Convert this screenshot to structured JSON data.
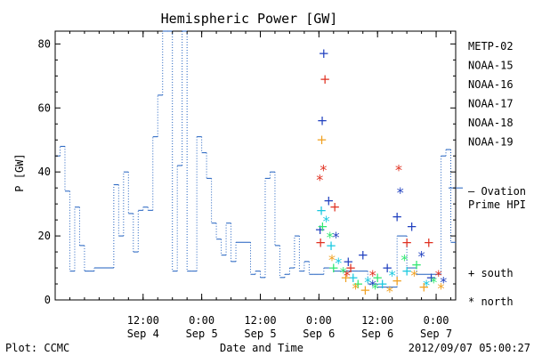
{
  "chart_data": {
    "type": "line",
    "title": "Hemispheric Power [GW]",
    "ylabel": "P [GW]",
    "xlabel": "Date and Time",
    "ylim": [
      0,
      84
    ],
    "xlim": [
      "2012-09-03T18:00",
      "2012-09-07T04:00"
    ],
    "yticks": [
      0,
      20,
      40,
      60,
      80
    ],
    "xticks": [
      {
        "t": "2012-09-04T12:00",
        "time": "12:00",
        "date": "Sep 4"
      },
      {
        "t": "2012-09-05T00:00",
        "time": "0:00",
        "date": "Sep 5"
      },
      {
        "t": "2012-09-05T12:00",
        "time": "12:00",
        "date": "Sep 5"
      },
      {
        "t": "2012-09-06T00:00",
        "time": "0:00",
        "date": "Sep 6"
      },
      {
        "t": "2012-09-06T12:00",
        "time": "12:00",
        "date": "Sep 6"
      },
      {
        "t": "2012-09-07T00:00",
        "time": "0:00",
        "date": "Sep 7"
      }
    ],
    "ovation": {
      "name": "— Ovation Prime HPI",
      "color": "#1f5fbf",
      "right_marker_value": 35,
      "x": [
        "2012-09-03T18:00",
        "2012-09-03T19:00",
        "2012-09-03T20:00",
        "2012-09-03T21:00",
        "2012-09-03T22:00",
        "2012-09-03T23:00",
        "2012-09-04T00:00",
        "2012-09-04T01:00",
        "2012-09-04T02:00",
        "2012-09-04T06:00",
        "2012-09-04T07:00",
        "2012-09-04T08:00",
        "2012-09-04T09:00",
        "2012-09-04T10:00",
        "2012-09-04T11:00",
        "2012-09-04T12:00",
        "2012-09-04T13:00",
        "2012-09-04T14:00",
        "2012-09-04T15:00",
        "2012-09-04T16:00",
        "2012-09-04T17:00",
        "2012-09-04T18:00",
        "2012-09-04T19:00",
        "2012-09-04T20:00",
        "2012-09-04T21:00",
        "2012-09-04T22:00",
        "2012-09-04T23:00",
        "2012-09-05T00:00",
        "2012-09-05T01:00",
        "2012-09-05T02:00",
        "2012-09-05T03:00",
        "2012-09-05T04:00",
        "2012-09-05T05:00",
        "2012-09-05T06:00",
        "2012-09-05T07:00",
        "2012-09-05T10:00",
        "2012-09-05T11:00",
        "2012-09-05T12:00",
        "2012-09-05T13:00",
        "2012-09-05T14:00",
        "2012-09-05T15:00",
        "2012-09-05T16:00",
        "2012-09-05T17:00",
        "2012-09-05T18:00",
        "2012-09-05T19:00",
        "2012-09-05T20:00",
        "2012-09-05T21:00",
        "2012-09-05T22:00",
        "2012-09-05T23:00",
        "2012-09-06T00:00",
        "2012-09-06T01:00",
        "2012-09-06T02:00",
        "2012-09-06T03:00",
        "2012-09-06T08:00",
        "2012-09-06T10:00",
        "2012-09-06T12:00",
        "2012-09-06T14:00",
        "2012-09-06T16:00",
        "2012-09-06T18:00",
        "2012-09-06T20:00",
        "2012-09-06T22:00",
        "2012-09-07T00:00",
        "2012-09-07T01:00",
        "2012-09-07T02:00",
        "2012-09-07T03:00",
        "2012-09-07T04:00"
      ],
      "y": [
        45,
        48,
        34,
        9,
        29,
        17,
        9,
        9,
        10,
        36,
        20,
        40,
        27,
        15,
        28,
        29,
        28,
        51,
        64,
        84,
        88,
        9,
        42,
        86,
        9,
        9,
        51,
        46,
        38,
        24,
        19,
        14,
        24,
        12,
        18,
        8,
        9,
        7,
        38,
        40,
        17,
        7,
        8,
        10,
        20,
        9,
        12,
        8,
        8,
        8,
        10,
        10,
        9,
        9,
        5,
        4,
        4,
        20,
        10,
        8,
        8,
        8,
        45,
        47,
        18,
        18
      ]
    },
    "satellites": [
      {
        "name": "METP-02",
        "color": "#000000",
        "south": [],
        "north": []
      },
      {
        "name": "NOAA-15",
        "color": "#1f3fbf",
        "south": [
          [
            "2012-09-06T01:00",
            77
          ],
          [
            "2012-09-06T00:40",
            56
          ],
          [
            "2012-09-06T02:00",
            31
          ],
          [
            "2012-09-06T00:15",
            22
          ],
          [
            "2012-09-06T06:00",
            12
          ],
          [
            "2012-09-06T09:00",
            14
          ],
          [
            "2012-09-06T14:00",
            10
          ],
          [
            "2012-09-06T16:00",
            26
          ],
          [
            "2012-09-06T19:00",
            23
          ],
          [
            "2012-09-06T23:00",
            7
          ]
        ],
        "north": [
          [
            "2012-09-06T16:40",
            34
          ],
          [
            "2012-09-06T21:00",
            14
          ],
          [
            "2012-09-06T11:00",
            5
          ],
          [
            "2012-09-06T03:30",
            20
          ],
          [
            "2012-09-07T01:30",
            6
          ]
        ]
      },
      {
        "name": "NOAA-16",
        "color": "#18c8e0",
        "south": [
          [
            "2012-09-06T00:30",
            28
          ],
          [
            "2012-09-06T02:30",
            17
          ],
          [
            "2012-09-06T07:00",
            7
          ],
          [
            "2012-09-06T13:00",
            5
          ],
          [
            "2012-09-06T18:00",
            9
          ]
        ],
        "north": [
          [
            "2012-09-06T01:30",
            25
          ],
          [
            "2012-09-06T04:00",
            12
          ],
          [
            "2012-09-06T10:00",
            6
          ],
          [
            "2012-09-06T15:00",
            8
          ],
          [
            "2012-09-06T22:00",
            5
          ]
        ]
      },
      {
        "name": "NOAA-17",
        "color": "#30e870",
        "south": [
          [
            "2012-09-06T00:45",
            23
          ],
          [
            "2012-09-06T03:00",
            10
          ],
          [
            "2012-09-06T08:00",
            5
          ],
          [
            "2012-09-06T12:00",
            7
          ],
          [
            "2012-09-06T20:00",
            11
          ]
        ],
        "north": [
          [
            "2012-09-06T02:15",
            20
          ],
          [
            "2012-09-06T05:00",
            9
          ],
          [
            "2012-09-06T11:30",
            4
          ],
          [
            "2012-09-06T17:30",
            13
          ],
          [
            "2012-09-06T23:30",
            6
          ]
        ]
      },
      {
        "name": "NOAA-18",
        "color": "#f0a020",
        "south": [
          [
            "2012-09-06T00:35",
            50
          ],
          [
            "2012-09-06T05:30",
            7
          ],
          [
            "2012-09-06T09:30",
            3
          ],
          [
            "2012-09-06T16:00",
            6
          ],
          [
            "2012-09-06T21:30",
            4
          ]
        ],
        "north": [
          [
            "2012-09-06T02:40",
            13
          ],
          [
            "2012-09-06T07:30",
            4
          ],
          [
            "2012-09-06T14:30",
            3
          ],
          [
            "2012-09-06T19:30",
            8
          ],
          [
            "2012-09-07T01:00",
            4
          ]
        ]
      },
      {
        "name": "NOAA-19",
        "color": "#e03020",
        "south": [
          [
            "2012-09-06T01:15",
            69
          ],
          [
            "2012-09-06T00:20",
            18
          ],
          [
            "2012-09-06T03:15",
            29
          ],
          [
            "2012-09-06T06:30",
            10
          ],
          [
            "2012-09-06T18:00",
            18
          ],
          [
            "2012-09-06T22:30",
            18
          ]
        ],
        "north": [
          [
            "2012-09-06T00:10",
            38
          ],
          [
            "2012-09-06T00:55",
            41
          ],
          [
            "2012-09-06T16:20",
            41
          ],
          [
            "2012-09-06T05:45",
            8
          ],
          [
            "2012-09-06T11:00",
            8
          ],
          [
            "2012-09-07T00:30",
            8
          ]
        ]
      }
    ],
    "marker_legend": {
      "south": "south",
      "north": "north"
    }
  },
  "footer": {
    "left": "Plot: CCMC",
    "right": "2012/09/07 05:00:27"
  }
}
